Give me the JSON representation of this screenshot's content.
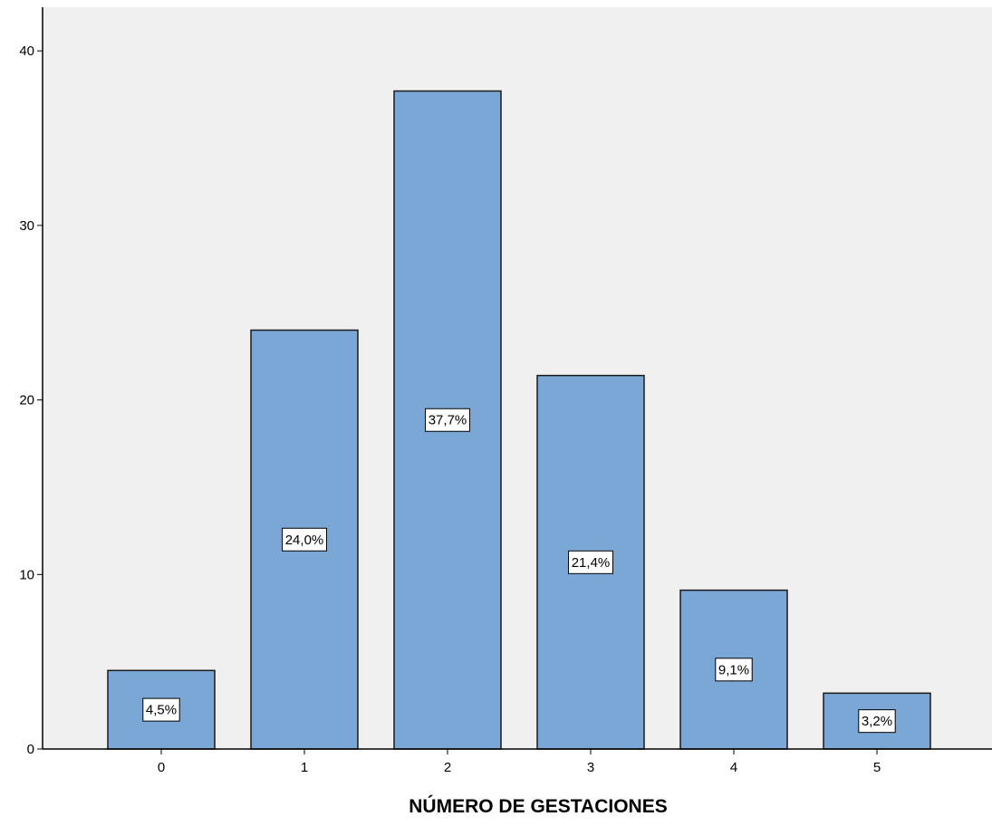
{
  "chart_data": {
    "type": "bar",
    "title": "",
    "xlabel": "NÚMERO DE GESTACIONES",
    "ylabel": "",
    "categories": [
      "0",
      "1",
      "2",
      "3",
      "4",
      "5"
    ],
    "values": [
      4.5,
      24.0,
      37.7,
      21.4,
      9.1,
      3.2
    ],
    "data_labels": [
      "4,5%",
      "24,0%",
      "37,7%",
      "21,4%",
      "9,1%",
      "3,2%"
    ],
    "ylim": [
      0,
      42.5
    ],
    "yticks": [
      0,
      10,
      20,
      30,
      40
    ],
    "ytick_labels": [
      "0",
      "10",
      "20",
      "30",
      "40"
    ],
    "grid": false,
    "legend": "none",
    "colors": {
      "bar_fill": "#7aa7d5",
      "bar_stroke": "#1a1a1a",
      "plot_background": "#f0f0f0",
      "label_box": "#ffffff",
      "axis": "#000000"
    }
  }
}
